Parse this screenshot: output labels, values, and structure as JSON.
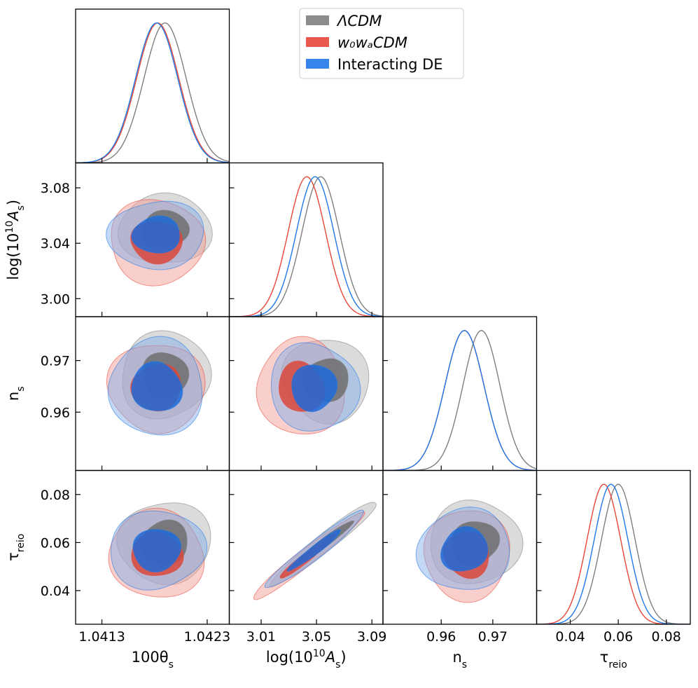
{
  "chart_data": {
    "type": "triangle-corner-plot",
    "grid": false,
    "legend": {
      "placement": "top-right",
      "entries": [
        {
          "id": "lcdm",
          "label": "ΛCDM",
          "color": "#7f7f7f"
        },
        {
          "id": "w0wa",
          "label": "w₀wₐCDM",
          "color": "#e8473a"
        },
        {
          "id": "ide",
          "label": "Interacting DE",
          "color": "#1f78e8"
        }
      ]
    },
    "parameters": [
      {
        "id": "theta",
        "label": "100θ",
        "sub": "s",
        "range": [
          1.04105,
          1.04251
        ],
        "ticks": [
          1.0413,
          1.0423
        ],
        "tick_labels": [
          "1.0413",
          "1.0423"
        ]
      },
      {
        "id": "As",
        "label": "log(10",
        "sup": "10",
        "sub": "s",
        "range": [
          2.987,
          3.098
        ],
        "ticks": [
          3.01,
          3.05,
          3.09
        ],
        "tick_labels": [
          "3.01",
          "3.05",
          "3.09"
        ],
        "y_ticks": [
          3.0,
          3.04,
          3.08
        ],
        "y_tick_labels": [
          "3.00",
          "3.04",
          "3.08"
        ]
      },
      {
        "id": "ns",
        "label": "n",
        "sub": "s",
        "range": [
          0.9487,
          0.9785
        ],
        "ticks": [
          0.96,
          0.97
        ],
        "tick_labels": [
          "0.96",
          "0.97"
        ]
      },
      {
        "id": "tau",
        "label": "τ",
        "sub": "reio",
        "range": [
          0.026,
          0.09
        ],
        "ticks": [
          0.04,
          0.06,
          0.08
        ],
        "tick_labels": [
          "0.04",
          "0.06",
          "0.08"
        ]
      }
    ],
    "marginals": [
      {
        "param": "theta",
        "series": [
          {
            "id": "lcdm",
            "mean": 1.0419,
            "sigma": 0.0002
          },
          {
            "id": "w0wa",
            "mean": 1.04183,
            "sigma": 0.0002
          },
          {
            "id": "ide",
            "mean": 1.04182,
            "sigma": 0.0002
          }
        ]
      },
      {
        "param": "As",
        "series": [
          {
            "id": "lcdm",
            "mean": 3.053,
            "sigma": 0.0135
          },
          {
            "id": "w0wa",
            "mean": 3.043,
            "sigma": 0.0135
          },
          {
            "id": "ide",
            "mean": 3.049,
            "sigma": 0.0135
          }
        ]
      },
      {
        "param": "ns",
        "series": [
          {
            "id": "lcdm",
            "mean": 0.9678,
            "sigma": 0.0036
          },
          {
            "id": "w0wa",
            "mean": 0.9645,
            "sigma": 0.0038
          },
          {
            "id": "ide",
            "mean": 0.9645,
            "sigma": 0.0038
          }
        ]
      },
      {
        "param": "tau",
        "series": [
          {
            "id": "lcdm",
            "mean": 0.06,
            "sigma": 0.007
          },
          {
            "id": "w0wa",
            "mean": 0.054,
            "sigma": 0.007
          },
          {
            "id": "ide",
            "mean": 0.057,
            "sigma": 0.007
          }
        ]
      }
    ],
    "contours": [
      {
        "x": "theta",
        "y": "As",
        "series": [
          {
            "id": "lcdm",
            "cx": 1.0419,
            "cy": 3.05,
            "rx": 0.00043,
            "ry": 0.026,
            "rot": 0
          },
          {
            "id": "w0wa",
            "cx": 1.04182,
            "cy": 3.041,
            "rx": 0.00046,
            "ry": 0.03,
            "rot": 0
          },
          {
            "id": "ide",
            "cx": 1.04182,
            "cy": 3.046,
            "rx": 0.00045,
            "ry": 0.025,
            "rot": 0
          }
        ]
      },
      {
        "x": "theta",
        "y": "ns",
        "series": [
          {
            "id": "lcdm",
            "cx": 1.0419,
            "cy": 0.9672,
            "rx": 0.00043,
            "ry": 0.0083,
            "rot": 0
          },
          {
            "id": "w0wa",
            "cx": 1.04182,
            "cy": 0.9648,
            "rx": 0.00045,
            "ry": 0.0088,
            "rot": 0
          },
          {
            "id": "ide",
            "cx": 1.04182,
            "cy": 0.9648,
            "rx": 0.00046,
            "ry": 0.0092,
            "rot": 0
          }
        ]
      },
      {
        "x": "As",
        "y": "ns",
        "series": [
          {
            "id": "lcdm",
            "cx": 3.057,
            "cy": 0.9662,
            "rx": 0.031,
            "ry": 0.0082,
            "rot": -18
          },
          {
            "id": "w0wa",
            "cx": 3.039,
            "cy": 0.9648,
            "rx": 0.032,
            "ry": 0.0093,
            "rot": -22
          },
          {
            "id": "ide",
            "cx": 3.048,
            "cy": 0.9648,
            "rx": 0.031,
            "ry": 0.0088,
            "rot": -18
          }
        ]
      },
      {
        "x": "theta",
        "y": "tau",
        "series": [
          {
            "id": "lcdm",
            "cx": 1.0419,
            "cy": 0.06,
            "rx": 0.00043,
            "ry": 0.0175,
            "rot": 0
          },
          {
            "id": "w0wa",
            "cx": 1.04182,
            "cy": 0.055,
            "rx": 0.00046,
            "ry": 0.018,
            "rot": 0
          },
          {
            "id": "ide",
            "cx": 1.04182,
            "cy": 0.057,
            "rx": 0.00045,
            "ry": 0.0165,
            "rot": 0
          }
        ]
      },
      {
        "x": "As",
        "y": "tau",
        "series": [
          {
            "id": "lcdm",
            "cx": 3.056,
            "cy": 0.06,
            "rx": 0.05,
            "ry": 0.0035,
            "rot": -38
          },
          {
            "id": "w0wa",
            "cx": 3.043,
            "cy": 0.054,
            "rx": 0.049,
            "ry": 0.0035,
            "rot": -38
          },
          {
            "id": "ide",
            "cx": 3.049,
            "cy": 0.057,
            "rx": 0.046,
            "ry": 0.0035,
            "rot": -38
          }
        ]
      },
      {
        "x": "ns",
        "y": "tau",
        "series": [
          {
            "id": "lcdm",
            "cx": 0.9665,
            "cy": 0.06,
            "rx": 0.0088,
            "ry": 0.0175,
            "rot": -20
          },
          {
            "id": "w0wa",
            "cx": 0.965,
            "cy": 0.055,
            "rx": 0.0085,
            "ry": 0.0185,
            "rot": -20
          },
          {
            "id": "ide",
            "cx": 0.9645,
            "cy": 0.057,
            "rx": 0.0088,
            "ry": 0.0175,
            "rot": -20
          }
        ]
      }
    ]
  }
}
